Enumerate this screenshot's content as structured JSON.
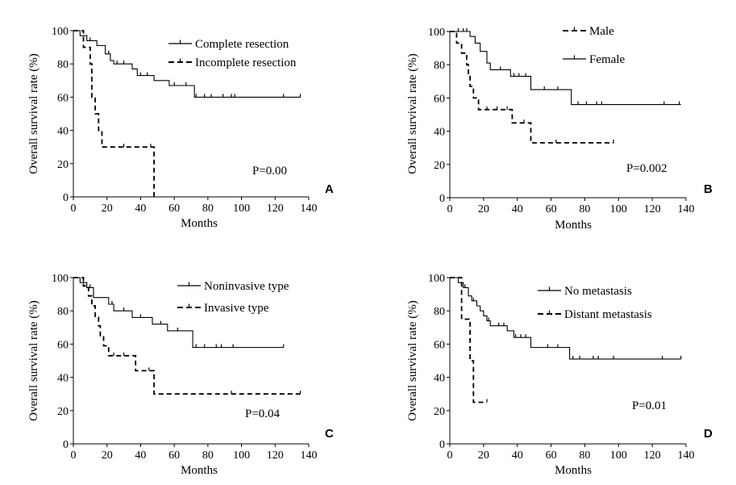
{
  "chart_data": [
    {
      "panel": "A",
      "type": "line",
      "xlabel": "Months",
      "ylabel": "Overall survival rate (%)",
      "xlim": [
        0,
        140
      ],
      "ylim": [
        0,
        100
      ],
      "xticks": [
        0,
        20,
        40,
        60,
        80,
        100,
        120,
        140
      ],
      "yticks": [
        0,
        20,
        40,
        60,
        80,
        100
      ],
      "p_text": "P=0.00",
      "legend_position": "top-right",
      "series": [
        {
          "name": "Complete resection",
          "style": "solid",
          "steps": [
            [
              0,
              100
            ],
            [
              4,
              100
            ],
            [
              4,
              97
            ],
            [
              8,
              97
            ],
            [
              8,
              94
            ],
            [
              14,
              94
            ],
            [
              14,
              91
            ],
            [
              19,
              91
            ],
            [
              19,
              86
            ],
            [
              22,
              86
            ],
            [
              22,
              82
            ],
            [
              24,
              82
            ],
            [
              24,
              80
            ],
            [
              35,
              80
            ],
            [
              35,
              77
            ],
            [
              38,
              77
            ],
            [
              38,
              73
            ],
            [
              48,
              73
            ],
            [
              48,
              70
            ],
            [
              57,
              70
            ],
            [
              57,
              67
            ],
            [
              72,
              67
            ],
            [
              72,
              60
            ],
            [
              135,
              60
            ]
          ],
          "censor": [
            [
              10,
              94
            ],
            [
              21,
              86
            ],
            [
              26,
              80
            ],
            [
              30,
              80
            ],
            [
              40,
              73
            ],
            [
              44,
              73
            ],
            [
              60,
              67
            ],
            [
              67,
              67
            ],
            [
              73,
              60
            ],
            [
              78,
              60
            ],
            [
              82,
              60
            ],
            [
              89,
              60
            ],
            [
              94,
              60
            ],
            [
              96,
              60
            ],
            [
              125,
              60
            ],
            [
              135,
              60
            ]
          ]
        },
        {
          "name": "Incomplete resection",
          "style": "dashed",
          "steps": [
            [
              0,
              100
            ],
            [
              6,
              100
            ],
            [
              6,
              90
            ],
            [
              10,
              90
            ],
            [
              10,
              80
            ],
            [
              11,
              80
            ],
            [
              11,
              60
            ],
            [
              13,
              60
            ],
            [
              13,
              50
            ],
            [
              15,
              50
            ],
            [
              15,
              40
            ],
            [
              17,
              40
            ],
            [
              17,
              30
            ],
            [
              48,
              30
            ],
            [
              48,
              0
            ]
          ],
          "censor": [
            [
              30,
              30
            ],
            [
              46,
              30
            ]
          ]
        }
      ]
    },
    {
      "panel": "B",
      "type": "line",
      "xlabel": "Months",
      "ylabel": "Overall survival rate (%)",
      "xlim": [
        0,
        140
      ],
      "ylim": [
        0,
        100
      ],
      "xticks": [
        0,
        20,
        40,
        60,
        80,
        100,
        120,
        140
      ],
      "yticks": [
        0,
        20,
        40,
        60,
        80,
        100
      ],
      "p_text": "P=0.002",
      "legend_position": "top-right",
      "series": [
        {
          "name": "Male",
          "style": "dashed",
          "steps": [
            [
              0,
              100
            ],
            [
              4,
              100
            ],
            [
              4,
              93
            ],
            [
              7,
              93
            ],
            [
              7,
              87
            ],
            [
              10,
              87
            ],
            [
              10,
              80
            ],
            [
              11,
              80
            ],
            [
              11,
              73
            ],
            [
              12,
              73
            ],
            [
              12,
              67
            ],
            [
              14,
              67
            ],
            [
              14,
              60
            ],
            [
              17,
              60
            ],
            [
              17,
              53
            ],
            [
              37,
              53
            ],
            [
              37,
              45
            ],
            [
              48,
              45
            ],
            [
              48,
              33
            ],
            [
              97,
              33
            ]
          ],
          "censor": [
            [
              22,
              53
            ],
            [
              28,
              53
            ],
            [
              34,
              53
            ],
            [
              44,
              45
            ],
            [
              63,
              33
            ],
            [
              97,
              33
            ]
          ]
        },
        {
          "name": "Female",
          "style": "solid",
          "steps": [
            [
              0,
              100
            ],
            [
              12,
              100
            ],
            [
              12,
              97
            ],
            [
              15,
              97
            ],
            [
              15,
              93
            ],
            [
              18,
              93
            ],
            [
              18,
              88
            ],
            [
              22,
              88
            ],
            [
              22,
              81
            ],
            [
              24,
              81
            ],
            [
              24,
              77
            ],
            [
              36,
              77
            ],
            [
              36,
              73
            ],
            [
              48,
              73
            ],
            [
              48,
              65
            ],
            [
              72,
              65
            ],
            [
              72,
              56
            ],
            [
              137,
              56
            ]
          ],
          "censor": [
            [
              5,
              100
            ],
            [
              8,
              100
            ],
            [
              10,
              100
            ],
            [
              30,
              77
            ],
            [
              38,
              73
            ],
            [
              41,
              73
            ],
            [
              45,
              73
            ],
            [
              56,
              65
            ],
            [
              64,
              65
            ],
            [
              76,
              56
            ],
            [
              81,
              56
            ],
            [
              87,
              56
            ],
            [
              90,
              56
            ],
            [
              127,
              56
            ],
            [
              136,
              56
            ]
          ]
        }
      ]
    },
    {
      "panel": "C",
      "type": "line",
      "xlabel": "Months",
      "ylabel": "Overall survival rate (%)",
      "xlim": [
        0,
        140
      ],
      "ylim": [
        0,
        100
      ],
      "xticks": [
        0,
        20,
        40,
        60,
        80,
        100,
        120,
        140
      ],
      "yticks": [
        0,
        20,
        40,
        60,
        80,
        100
      ],
      "p_text": "P=0.04",
      "legend_position": "top-right",
      "series": [
        {
          "name": "Noninvasive type",
          "style": "solid",
          "steps": [
            [
              0,
              100
            ],
            [
              4,
              100
            ],
            [
              4,
              97
            ],
            [
              8,
              97
            ],
            [
              8,
              94
            ],
            [
              12,
              94
            ],
            [
              12,
              88
            ],
            [
              21,
              88
            ],
            [
              21,
              84
            ],
            [
              24,
              84
            ],
            [
              24,
              80
            ],
            [
              35,
              80
            ],
            [
              35,
              76
            ],
            [
              47,
              76
            ],
            [
              47,
              72
            ],
            [
              56,
              72
            ],
            [
              56,
              68
            ],
            [
              71,
              68
            ],
            [
              71,
              58
            ],
            [
              125,
              58
            ]
          ],
          "censor": [
            [
              6,
              97
            ],
            [
              10,
              94
            ],
            [
              23,
              84
            ],
            [
              30,
              80
            ],
            [
              40,
              76
            ],
            [
              52,
              72
            ],
            [
              62,
              68
            ],
            [
              73,
              58
            ],
            [
              78,
              58
            ],
            [
              85,
              58
            ],
            [
              88,
              58
            ],
            [
              95,
              58
            ],
            [
              125,
              58
            ]
          ]
        },
        {
          "name": "Invasive type",
          "style": "dashed",
          "steps": [
            [
              0,
              100
            ],
            [
              6,
              100
            ],
            [
              6,
              95
            ],
            [
              9,
              95
            ],
            [
              9,
              89
            ],
            [
              11,
              89
            ],
            [
              11,
              83
            ],
            [
              13,
              83
            ],
            [
              13,
              76
            ],
            [
              15,
              76
            ],
            [
              15,
              71
            ],
            [
              16,
              71
            ],
            [
              16,
              65
            ],
            [
              18,
              65
            ],
            [
              18,
              59
            ],
            [
              21,
              59
            ],
            [
              21,
              53
            ],
            [
              37,
              53
            ],
            [
              37,
              44
            ],
            [
              48,
              44
            ],
            [
              48,
              30
            ],
            [
              135,
              30
            ]
          ],
          "censor": [
            [
              24,
              53
            ],
            [
              30,
              53
            ],
            [
              45,
              44
            ],
            [
              94,
              30
            ],
            [
              135,
              30
            ]
          ]
        }
      ]
    },
    {
      "panel": "D",
      "type": "line",
      "xlabel": "Months",
      "ylabel": "Overall survival rate (%)",
      "xlim": [
        0,
        140
      ],
      "ylim": [
        0,
        100
      ],
      "xticks": [
        0,
        20,
        40,
        60,
        80,
        100,
        120,
        140
      ],
      "yticks": [
        0,
        20,
        40,
        60,
        80,
        100
      ],
      "p_text": "P=0.01",
      "legend_position": "top-right",
      "series": [
        {
          "name": "No metastasis",
          "style": "solid",
          "steps": [
            [
              0,
              100
            ],
            [
              5,
              100
            ],
            [
              5,
              97
            ],
            [
              8,
              97
            ],
            [
              8,
              94
            ],
            [
              11,
              94
            ],
            [
              11,
              89
            ],
            [
              13,
              89
            ],
            [
              13,
              86
            ],
            [
              16,
              86
            ],
            [
              16,
              83
            ],
            [
              18,
              83
            ],
            [
              18,
              80
            ],
            [
              20,
              80
            ],
            [
              20,
              77
            ],
            [
              22,
              77
            ],
            [
              22,
              74
            ],
            [
              24,
              74
            ],
            [
              24,
              71
            ],
            [
              34,
              71
            ],
            [
              34,
              68
            ],
            [
              38,
              68
            ],
            [
              38,
              64
            ],
            [
              48,
              64
            ],
            [
              48,
              58
            ],
            [
              71,
              58
            ],
            [
              71,
              51
            ],
            [
              137,
              51
            ]
          ],
          "censor": [
            [
              9,
              94
            ],
            [
              14,
              86
            ],
            [
              23,
              74
            ],
            [
              29,
              71
            ],
            [
              32,
              71
            ],
            [
              39,
              64
            ],
            [
              42,
              64
            ],
            [
              45,
              64
            ],
            [
              58,
              58
            ],
            [
              64,
              58
            ],
            [
              73,
              51
            ],
            [
              77,
              51
            ],
            [
              85,
              51
            ],
            [
              88,
              51
            ],
            [
              97,
              51
            ],
            [
              126,
              51
            ],
            [
              137,
              51
            ]
          ]
        },
        {
          "name": "Distant metastasis",
          "style": "dashed",
          "steps": [
            [
              0,
              100
            ],
            [
              7,
              100
            ],
            [
              7,
              75
            ],
            [
              12,
              75
            ],
            [
              12,
              50
            ],
            [
              14,
              50
            ],
            [
              14,
              25
            ],
            [
              22,
              25
            ]
          ],
          "censor": [
            [
              22,
              25
            ]
          ]
        }
      ]
    }
  ]
}
